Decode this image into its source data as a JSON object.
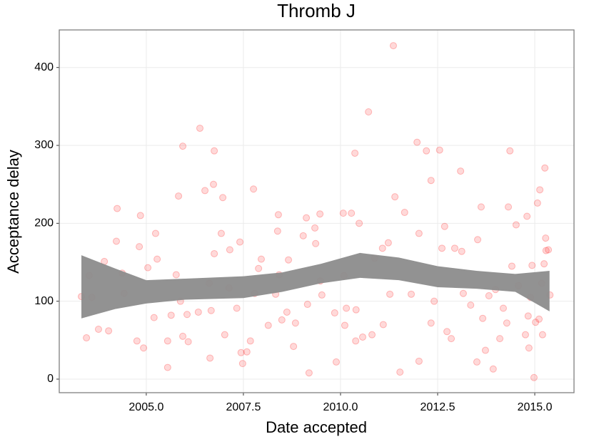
{
  "chart_data": {
    "type": "scatter",
    "title": "Thromb J",
    "x_label": "Date accepted",
    "y_label": "Acceptance delay",
    "x": [
      2003.33,
      2003.46,
      2003.53,
      2003.6,
      2003.77,
      2003.92,
      2004.03,
      2004.25,
      2004.23,
      2004.38,
      2004.43,
      2004.76,
      2004.82,
      2004.85,
      2004.93,
      2005.04,
      2005.2,
      2005.24,
      2005.28,
      2005.55,
      2005.55,
      2005.64,
      2005.77,
      2005.83,
      2005.88,
      2005.94,
      2005.94,
      2006.05,
      2006.08,
      2006.34,
      2006.38,
      2006.51,
      2006.62,
      2006.64,
      2006.67,
      2006.73,
      2006.75,
      2006.75,
      2006.93,
      2006.97,
      2007.02,
      2007.13,
      2007.15,
      2007.33,
      2007.41,
      2007.44,
      2007.48,
      2007.59,
      2007.68,
      2007.76,
      2007.79,
      2007.89,
      2007.96,
      2008.14,
      2008.33,
      2008.38,
      2008.4,
      2008.42,
      2008.49,
      2008.62,
      2008.66,
      2008.79,
      2008.84,
      2009.04,
      2009.12,
      2009.15,
      2009.19,
      2009.34,
      2009.36,
      2009.47,
      2009.48,
      2009.52,
      2009.85,
      2009.89,
      2010.07,
      2010.09,
      2010.11,
      2010.15,
      2010.28,
      2010.37,
      2010.39,
      2010.4,
      2010.48,
      2010.57,
      2010.72,
      2010.81,
      2010.88,
      2011.08,
      2011.1,
      2011.23,
      2011.27,
      2011.36,
      2011.4,
      2011.53,
      2011.65,
      2011.82,
      2011.97,
      2012.02,
      2012.02,
      2012.21,
      2012.33,
      2012.33,
      2012.41,
      2012.55,
      2012.61,
      2012.68,
      2012.74,
      2012.85,
      2012.94,
      2013.09,
      2013.12,
      2013.16,
      2013.35,
      2013.51,
      2013.53,
      2013.62,
      2013.66,
      2013.73,
      2013.82,
      2013.93,
      2013.99,
      2014.1,
      2014.19,
      2014.32,
      2014.36,
      2014.41,
      2014.52,
      2014.58,
      2014.76,
      2014.8,
      2014.85,
      2014.89,
      2014.93,
      2014.98,
      2015.02,
      2015.07,
      2015.11,
      2015.13,
      2015.18,
      2015.2,
      2015.24,
      2015.26,
      2015.28,
      2015.29,
      2015.35,
      2015.39,
      2014.28,
      2014.83
    ],
    "values": [
      106,
      53,
      133,
      105,
      64,
      151,
      62,
      219,
      177,
      136,
      110,
      49,
      170,
      210,
      40,
      143,
      79,
      187,
      154,
      15,
      49,
      82,
      134,
      235,
      100,
      299,
      55,
      83,
      48,
      86,
      322,
      242,
      123,
      27,
      88,
      250,
      293,
      161,
      187,
      233,
      57,
      117,
      166,
      91,
      176,
      34,
      20,
      35,
      49,
      244,
      110,
      142,
      154,
      69,
      109,
      190,
      211,
      134,
      76,
      86,
      153,
      42,
      72,
      184,
      207,
      96,
      8,
      194,
      174,
      212,
      126,
      108,
      85,
      22,
      213,
      133,
      69,
      91,
      213,
      290,
      49,
      89,
      200,
      54,
      343,
      57,
      155,
      168,
      70,
      175,
      109,
      428,
      234,
      9,
      214,
      109,
      304,
      23,
      187,
      293,
      255,
      72,
      100,
      294,
      168,
      196,
      61,
      52,
      168,
      267,
      164,
      110,
      95,
      22,
      179,
      221,
      78,
      37,
      107,
      13,
      115,
      52,
      91,
      221,
      293,
      145,
      198,
      120,
      57,
      209,
      40,
      105,
      146,
      2,
      73,
      226,
      77,
      243,
      123,
      57,
      148,
      271,
      181,
      165,
      166,
      108,
      72,
      81
    ],
    "color": "#ff0000",
    "band": {
      "x": [
        2003.33,
        2004.2,
        2005,
        2006,
        2007.5,
        2008.5,
        2009.5,
        2010.5,
        2011.5,
        2012.5,
        2013.5,
        2014.5,
        2015.38
      ],
      "upper": [
        159,
        142,
        127,
        129,
        132,
        137,
        148,
        162,
        156,
        145,
        139,
        135,
        139
      ],
      "lower": [
        78,
        90,
        97,
        102,
        104,
        112,
        123,
        130,
        127,
        118,
        116,
        112,
        87
      ],
      "color": "#8c8c8c"
    },
    "xlim": [
      2002.76,
      2016.01
    ],
    "ylim": [
      -17.4,
      448.2
    ],
    "xticks": [
      {
        "value": 2005,
        "label": "2005.0"
      },
      2007.5,
      {
        "value": 2010,
        "label": "2010.0"
      },
      2012.5,
      {
        "value": 2015,
        "label": "2015.0"
      }
    ],
    "yticks": [
      0,
      100,
      200,
      300,
      400
    ],
    "grid": true
  }
}
